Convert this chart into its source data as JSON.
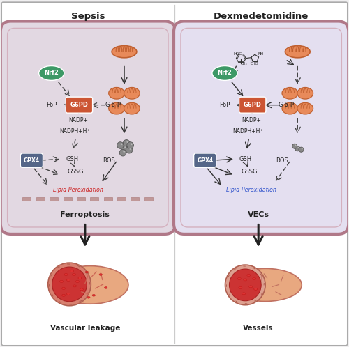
{
  "title_left": "Sepsis",
  "title_right": "Dexmedetomidine",
  "label_ferroptosis": "Ferroptosis",
  "label_vecs": "VECs",
  "label_vascular_leakage": "Vascular leakage",
  "label_vessels": "Vessels",
  "outer_bg": "#f0eff0",
  "cell_fill_left": "#e2d8e2",
  "cell_fill_right": "#e4dff0",
  "cell_border": "#b07888",
  "cell_border2": "#c8909a",
  "nrf2_color": "#3d9966",
  "g6pd_color": "#cc5533",
  "gpx4_color": "#556688",
  "mito_body": "#e88a5a",
  "mito_line": "#c06030",
  "rbc_fill": "#dd3333",
  "rbc_edge": "#bb1111",
  "ros_fill": "#888888",
  "ros_edge": "#555555",
  "vessel_outer": "#e8a880",
  "vessel_inner_fill": "#cc3333",
  "vessel_wall_line": "#cc6655",
  "lipid_bar": "#c09898",
  "lipid_bar_edge": "#aa7777",
  "arrow_solid": "#333333",
  "arrow_dashed": "#444444",
  "text_dark": "#222222",
  "red_text": "#cc2222",
  "blue_text": "#3355cc",
  "white": "#ffffff"
}
